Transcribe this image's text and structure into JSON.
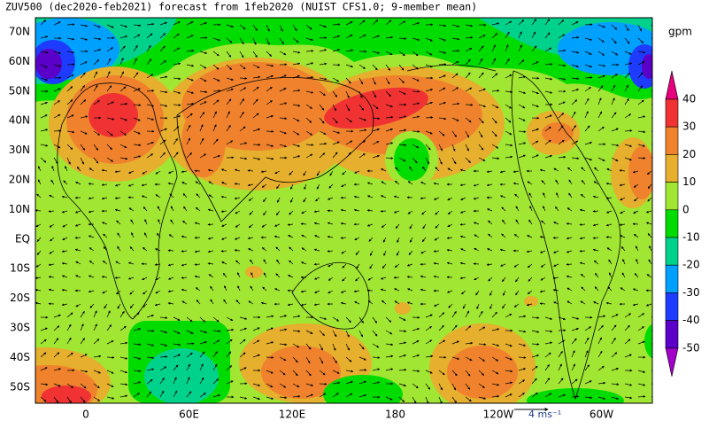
{
  "title": "ZUV500 (dec2020-feb2021) forecast from 1feb2020 (NUIST CFS1.0; 9-member mean)",
  "lat_labels": [
    "70N",
    "60N",
    "50N",
    "40N",
    "30N",
    "20N",
    "10N",
    "EQ",
    "10S",
    "20S",
    "30S",
    "40S",
    "50S"
  ],
  "lon_labels": [
    "0",
    "60E",
    "120E",
    "180",
    "120W",
    "60W"
  ],
  "colorbar": {
    "unit": "gpm",
    "levels": [
      40,
      30,
      20,
      10,
      0,
      -10,
      -20,
      -30,
      -40,
      -50
    ],
    "colors": [
      "#e6007d",
      "#f03232",
      "#f0822d",
      "#e6af2d",
      "#a0e632",
      "#00dc00",
      "#00d28c",
      "#00a0ff",
      "#1e3cff",
      "#5a00c8",
      "#a000c8"
    ]
  },
  "reference_vector": {
    "label": "4 ms⁻¹"
  }
}
